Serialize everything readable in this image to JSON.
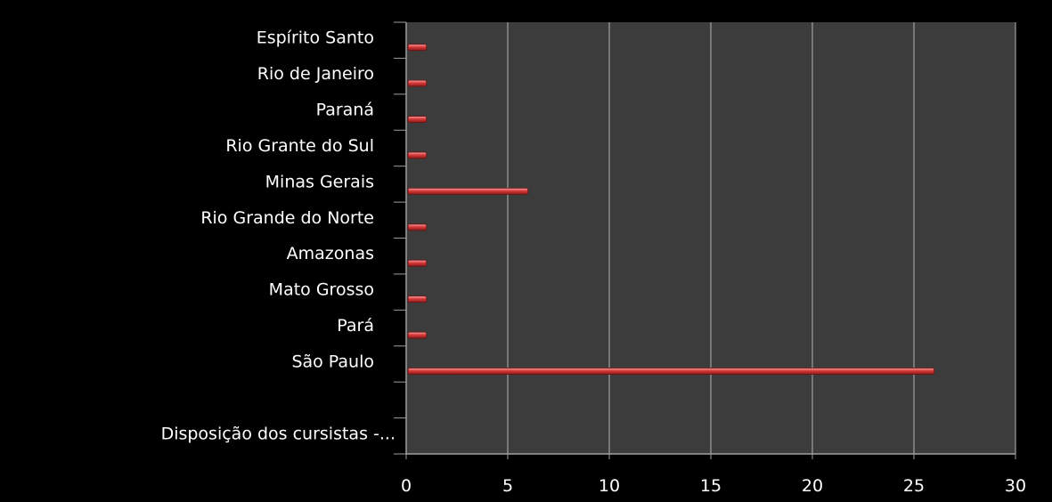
{
  "chart_data": {
    "type": "bar",
    "orientation": "horizontal",
    "title": "",
    "xlabel": "",
    "ylabel": "",
    "categories": [
      "Espírito Santo",
      "Rio de Janeiro",
      "Paraná",
      "Rio Grante do Sul",
      "Minas Gerais",
      "Rio Grande do Norte",
      "Amazonas",
      "Mato Grosso",
      "Pará",
      "São Paulo",
      "",
      "Disposição dos cursistas -..."
    ],
    "values": [
      1,
      1,
      1,
      1,
      6,
      1,
      1,
      1,
      1,
      26,
      null,
      null
    ],
    "xlim": [
      0,
      30
    ],
    "xticks": [
      0,
      5,
      10,
      15,
      20,
      25,
      30
    ],
    "grid": "vertical",
    "legend": "none",
    "colors": {
      "page_background": "#000000",
      "plot_background": "#3c3c3c",
      "bar": "#d83a3a",
      "bar_highlight": "#f3a5a5",
      "gridline": "#a0a0a0",
      "text": "#ffffff"
    }
  }
}
